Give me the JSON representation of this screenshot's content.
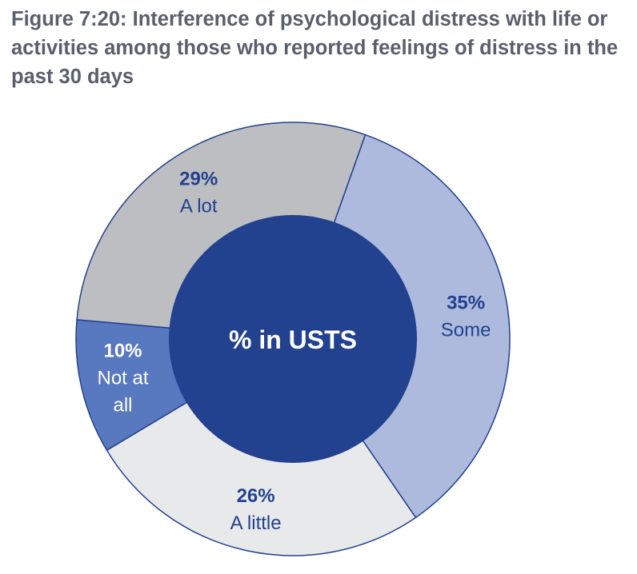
{
  "title": "Figure 7:20: Interference of psychological distress with life or activities among those who reported feelings of distress in the past 30 days",
  "chart_data": {
    "type": "pie",
    "center_label": "% in USTS",
    "unit": "%",
    "slices": [
      {
        "label": "Some",
        "pct_label": "35%",
        "value": 35,
        "color": "#adbade",
        "label_lines": [
          "Some"
        ]
      },
      {
        "label": "A little",
        "pct_label": "26%",
        "value": 26,
        "color": "#e8e9eb",
        "label_lines": [
          "A little"
        ]
      },
      {
        "label": "Not at all",
        "pct_label": "10%",
        "value": 10,
        "color": "#5878c0",
        "label_lines": [
          "Not at",
          "all"
        ]
      },
      {
        "label": "A lot",
        "pct_label": "29%",
        "value": 29,
        "color": "#bdbec1",
        "label_lines": [
          "A lot"
        ]
      }
    ],
    "colors": {
      "center": "#22418f",
      "outline": "#22418f",
      "label_dark": "#22418f",
      "label_light": "#ffffff",
      "center_text": "#ffffff"
    }
  }
}
